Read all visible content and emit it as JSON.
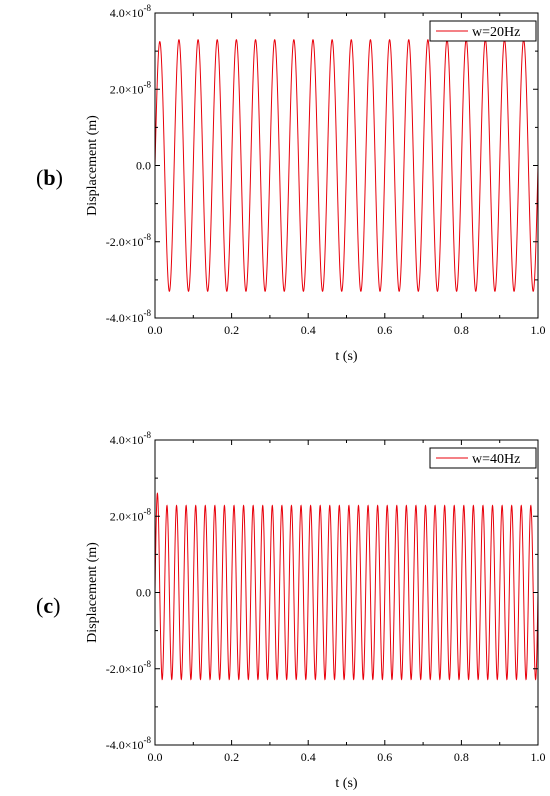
{
  "panels": [
    {
      "paren_open": "(",
      "letter": "b",
      "paren_close": ")"
    },
    {
      "paren_open": "(",
      "letter": "c",
      "paren_close": ")"
    }
  ],
  "chart_data": [
    {
      "type": "line",
      "xlabel": "t (s)",
      "ylabel": "Displacement (m)",
      "xlim": [
        0.0,
        1.0
      ],
      "ylim": [
        -4e-08,
        4e-08
      ],
      "x_ticks": [
        0.0,
        0.2,
        0.4,
        0.6,
        0.8,
        1.0
      ],
      "x_tick_labels": [
        "0.0",
        "0.2",
        "0.4",
        "0.6",
        "0.8",
        "1.0"
      ],
      "y_ticks": [
        4e-08,
        2e-08,
        0.0,
        -2e-08,
        -4e-08
      ],
      "y_tick_labels": [
        {
          "base": "4.0×10",
          "exp": "-8"
        },
        {
          "base": "2.0×10",
          "exp": "-8"
        },
        {
          "base": "0.0",
          "exp": ""
        },
        {
          "base": "-2.0×10",
          "exp": "-8"
        },
        {
          "base": "-4.0×10",
          "exp": "-8"
        }
      ],
      "legend_position": "top-right",
      "grid": false,
      "series": [
        {
          "name": "w=20Hz",
          "color": "#e8000b",
          "frequency_hz": 20,
          "amplitude": 3.3e-08,
          "first_peak": 3.25e-08,
          "t_start": 0.0,
          "t_end": 1.0
        }
      ]
    },
    {
      "type": "line",
      "xlabel": "t (s)",
      "ylabel": "Displacement (m)",
      "xlim": [
        0.0,
        1.0
      ],
      "ylim": [
        -4e-08,
        4e-08
      ],
      "x_ticks": [
        0.0,
        0.2,
        0.4,
        0.6,
        0.8,
        1.0
      ],
      "x_tick_labels": [
        "0.0",
        "0.2",
        "0.4",
        "0.6",
        "0.8",
        "1.0"
      ],
      "y_ticks": [
        4e-08,
        2e-08,
        0.0,
        -2e-08,
        -4e-08
      ],
      "y_tick_labels": [
        {
          "base": "4.0×10",
          "exp": "-8"
        },
        {
          "base": "2.0×10",
          "exp": "-8"
        },
        {
          "base": "0.0",
          "exp": ""
        },
        {
          "base": "-2.0×10",
          "exp": "-8"
        },
        {
          "base": "-4.0×10",
          "exp": "-8"
        }
      ],
      "legend_position": "top-right",
      "grid": false,
      "series": [
        {
          "name": "w=40Hz",
          "color": "#e8000b",
          "frequency_hz": 40,
          "amplitude": 2.28e-08,
          "first_peak": 2.6e-08,
          "t_start": 0.0,
          "t_end": 1.0
        }
      ]
    }
  ]
}
